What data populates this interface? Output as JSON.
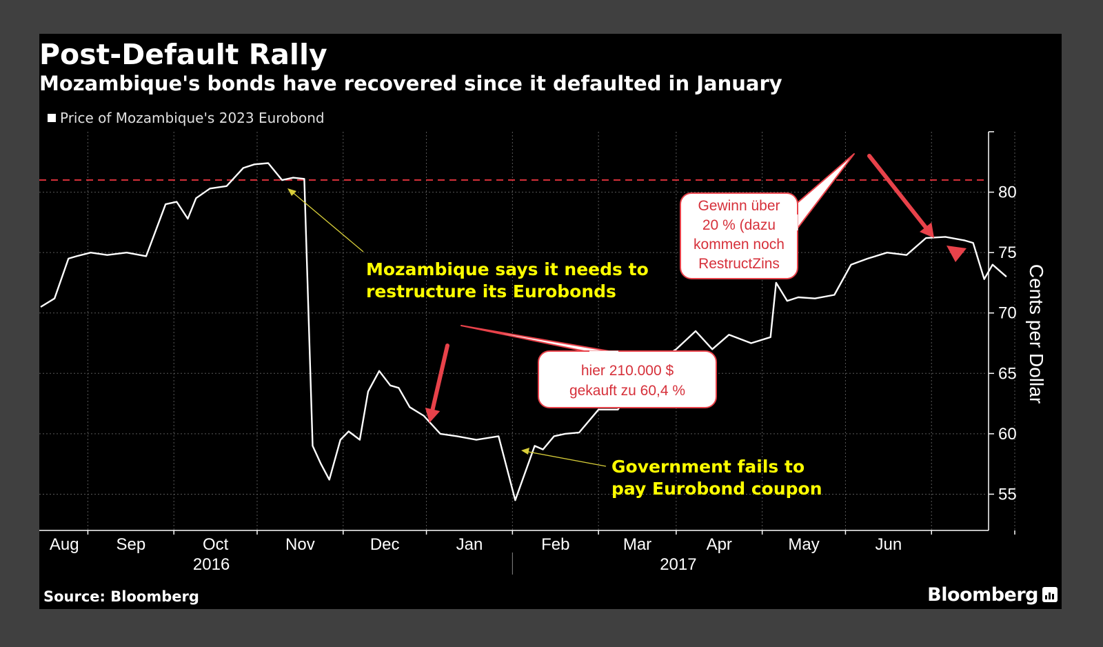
{
  "title": "Post-Default Rally",
  "subtitle": "Mozambique's bonds have recovered since it defaulted in January",
  "legend": "Price of Mozambique's 2023 Eurobond",
  "source": "Source: Bloomberg",
  "brand": "Bloomberg",
  "colors": {
    "background": "#000000",
    "line": "#ffffff",
    "annotation": "#ffff00",
    "callout": "#e8424a",
    "reference": "#d6303a"
  },
  "chart_data": {
    "type": "line",
    "series": [
      {
        "name": "Price of Mozambique's 2023 Eurobond",
        "x": [
          "2016-07-15",
          "2016-07-20",
          "2016-07-25",
          "2016-07-28",
          "2016-08-02",
          "2016-08-08",
          "2016-08-15",
          "2016-08-22",
          "2016-08-29",
          "2016-09-02",
          "2016-09-06",
          "2016-09-09",
          "2016-09-14",
          "2016-09-20",
          "2016-09-26",
          "2016-09-30",
          "2016-10-05",
          "2016-10-10",
          "2016-10-14",
          "2016-10-18",
          "2016-10-21",
          "2016-10-24",
          "2016-10-27",
          "2016-10-31",
          "2016-11-03",
          "2016-11-07",
          "2016-11-10",
          "2016-11-14",
          "2016-11-18",
          "2016-11-21",
          "2016-11-25",
          "2016-11-30",
          "2016-12-06",
          "2016-12-12",
          "2016-12-19",
          "2016-12-27",
          "2017-01-02",
          "2017-01-09",
          "2017-01-12",
          "2017-01-16",
          "2017-01-20",
          "2017-01-25",
          "2017-02-01",
          "2017-02-08",
          "2017-02-15",
          "2017-02-22",
          "2017-03-01",
          "2017-03-08",
          "2017-03-14",
          "2017-03-20",
          "2017-03-28",
          "2017-04-04",
          "2017-04-06",
          "2017-04-10",
          "2017-04-14",
          "2017-04-20",
          "2017-04-27",
          "2017-05-03",
          "2017-05-09",
          "2017-05-16",
          "2017-05-23",
          "2017-05-30",
          "2017-06-06",
          "2017-06-13",
          "2017-06-16",
          "2017-06-20",
          "2017-06-23",
          "2017-06-28"
        ],
        "values": [
          70.5,
          71.2,
          74.5,
          74.7,
          75.0,
          74.8,
          75.0,
          74.7,
          79.0,
          79.2,
          77.8,
          79.5,
          80.3,
          80.5,
          82.0,
          82.3,
          82.4,
          81.0,
          81.2,
          81.1,
          59.0,
          57.5,
          56.2,
          59.5,
          60.2,
          59.5,
          63.5,
          65.2,
          64.0,
          63.8,
          62.2,
          61.5,
          60.0,
          59.8,
          59.5,
          59.8,
          54.5,
          59.0,
          58.7,
          59.8,
          60.0,
          60.1,
          62.0,
          62.0,
          64.5,
          66.0,
          67.0,
          68.5,
          67.0,
          68.2,
          67.5,
          68.0,
          72.5,
          71.0,
          71.3,
          71.2,
          71.5,
          74.0,
          74.5,
          75.0,
          74.8,
          76.2,
          76.3,
          76.0,
          75.8,
          72.8,
          74.0,
          73.0
        ]
      }
    ],
    "ylabel": "Cents per Dollar",
    "ylim": [
      52,
      85
    ],
    "yticks": [
      55,
      60,
      65,
      70,
      75,
      80
    ],
    "xticks": [
      "Aug",
      "Sep",
      "Oct",
      "Nov",
      "Dec",
      "Jan",
      "Feb",
      "Mar",
      "Apr",
      "May",
      "Jun"
    ],
    "years": [
      "2016",
      "2017"
    ],
    "reference_line": 81,
    "grid": true,
    "legend_position": "top-left",
    "annotations": [
      {
        "lines": [
          "Mozambique says it needs to",
          "restructure its Eurobonds"
        ]
      },
      {
        "lines": [
          "Government fails to",
          "pay Eurobond coupon"
        ]
      }
    ],
    "callouts": [
      {
        "lines": [
          "hier 210.000 $",
          "gekauft zu 60,4 %"
        ]
      },
      {
        "lines": [
          "Gewinn über",
          "20 % (dazu",
          "kommen noch",
          "RestructZins"
        ]
      }
    ]
  }
}
